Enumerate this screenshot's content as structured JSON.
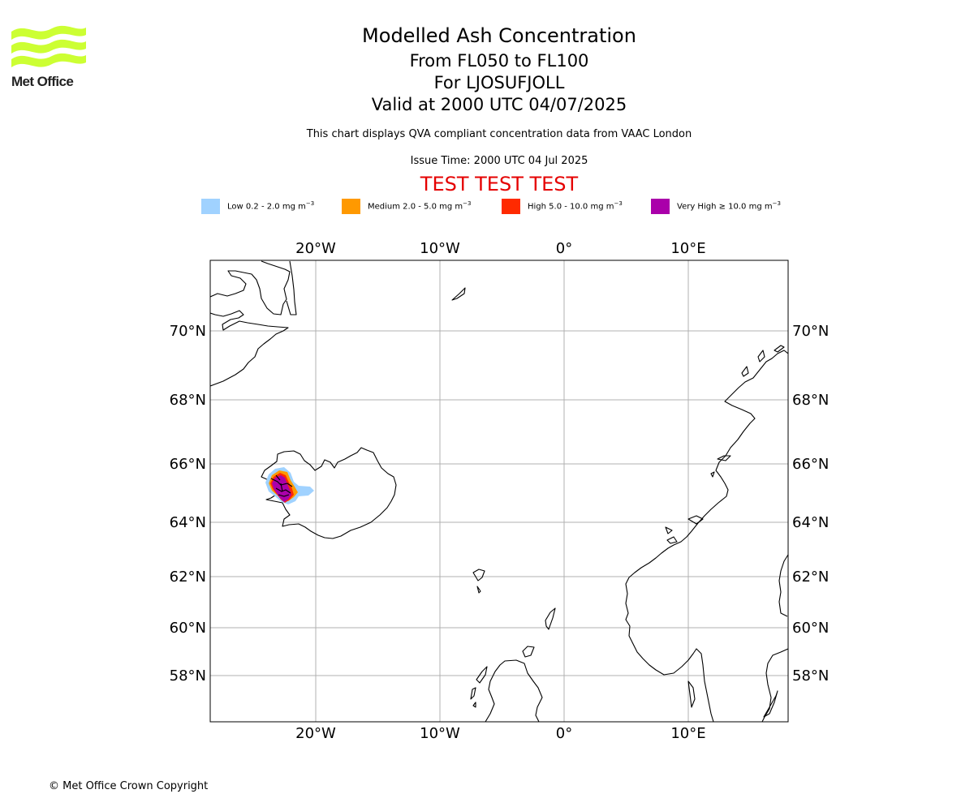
{
  "header": {
    "logo_text": "Met Office",
    "title": "Modelled Ash Concentration",
    "levels": "From FL050 to FL100",
    "location": "For LJOSUFJOLL",
    "valid": "Valid at 2000 UTC 04/07/2025",
    "subtitle": "This chart displays QVA compliant concentration data from VAAC London",
    "issue_time": "Issue Time: 2000 UTC 04 Jul 2025",
    "test_banner": "TEST TEST TEST"
  },
  "legend": [
    {
      "label": "Low 0.2 - 2.0 mg m",
      "unit_exp": "−3",
      "color": "#a0d2ff"
    },
    {
      "label": "Medium 2.0 - 5.0 mg m",
      "unit_exp": "−3",
      "color": "#ff9900"
    },
    {
      "label": "High 5.0 - 10.0 mg m",
      "unit_exp": "−3",
      "color": "#ff2a00"
    },
    {
      "label": "Very High  ≥  10.0 mg m",
      "unit_exp": "−3",
      "color": "#aa00aa"
    }
  ],
  "map": {
    "lon_labels": [
      "20°W",
      "10°W",
      "0°",
      "10°E"
    ],
    "lat_labels": [
      "70°N",
      "68°N",
      "66°N",
      "64°N",
      "62°N",
      "60°N",
      "58°N"
    ]
  },
  "footer": {
    "copyright": "© Met Office Crown Copyright"
  },
  "colors": {
    "logo": "#ccff33",
    "test_banner": "#e50000",
    "gridline": "#b0b0b0",
    "coast": "#000000"
  }
}
